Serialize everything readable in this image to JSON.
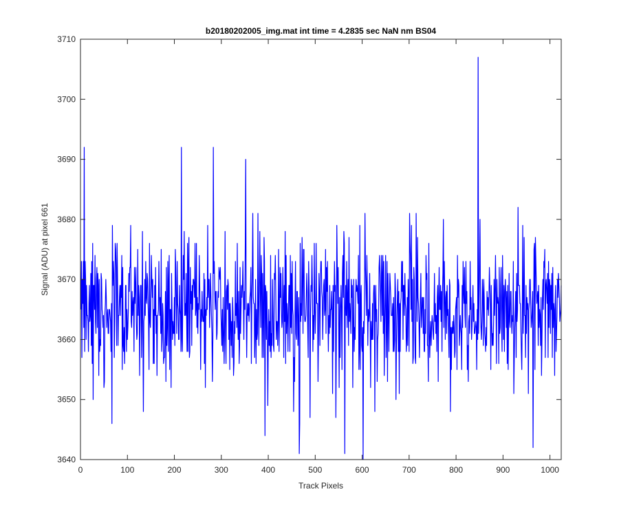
{
  "chart_data": {
    "type": "line",
    "title": "b20180202005_img.mat int time = 4.2835 sec  NaN nm BS04",
    "xlabel": "Track Pixels",
    "ylabel": "Signal (ADU) at pixel 661",
    "xlim": [
      0,
      1024
    ],
    "ylim": [
      3640,
      3710
    ],
    "xticks": [
      0,
      100,
      200,
      300,
      400,
      500,
      600,
      700,
      800,
      900,
      1000
    ],
    "yticks": [
      3640,
      3650,
      3660,
      3670,
      3680,
      3690,
      3700,
      3710
    ],
    "grid": false,
    "series": [
      {
        "color": "#0000ff",
        "x_start": 1,
        "x_step": 1,
        "noise_model": {
          "mean": 3665,
          "std": 6,
          "peaks": [
            {
              "x": 8,
              "y": 3692
            },
            {
              "x": 215,
              "y": 3692
            },
            {
              "x": 283,
              "y": 3692
            },
            {
              "x": 352,
              "y": 3690
            },
            {
              "x": 847,
              "y": 3707
            },
            {
              "x": 602,
              "y": 3640
            },
            {
              "x": 466,
              "y": 3641
            },
            {
              "x": 563,
              "y": 3641
            },
            {
              "x": 964,
              "y": 3642
            },
            {
              "x": 393,
              "y": 3644
            }
          ]
        }
      }
    ]
  }
}
